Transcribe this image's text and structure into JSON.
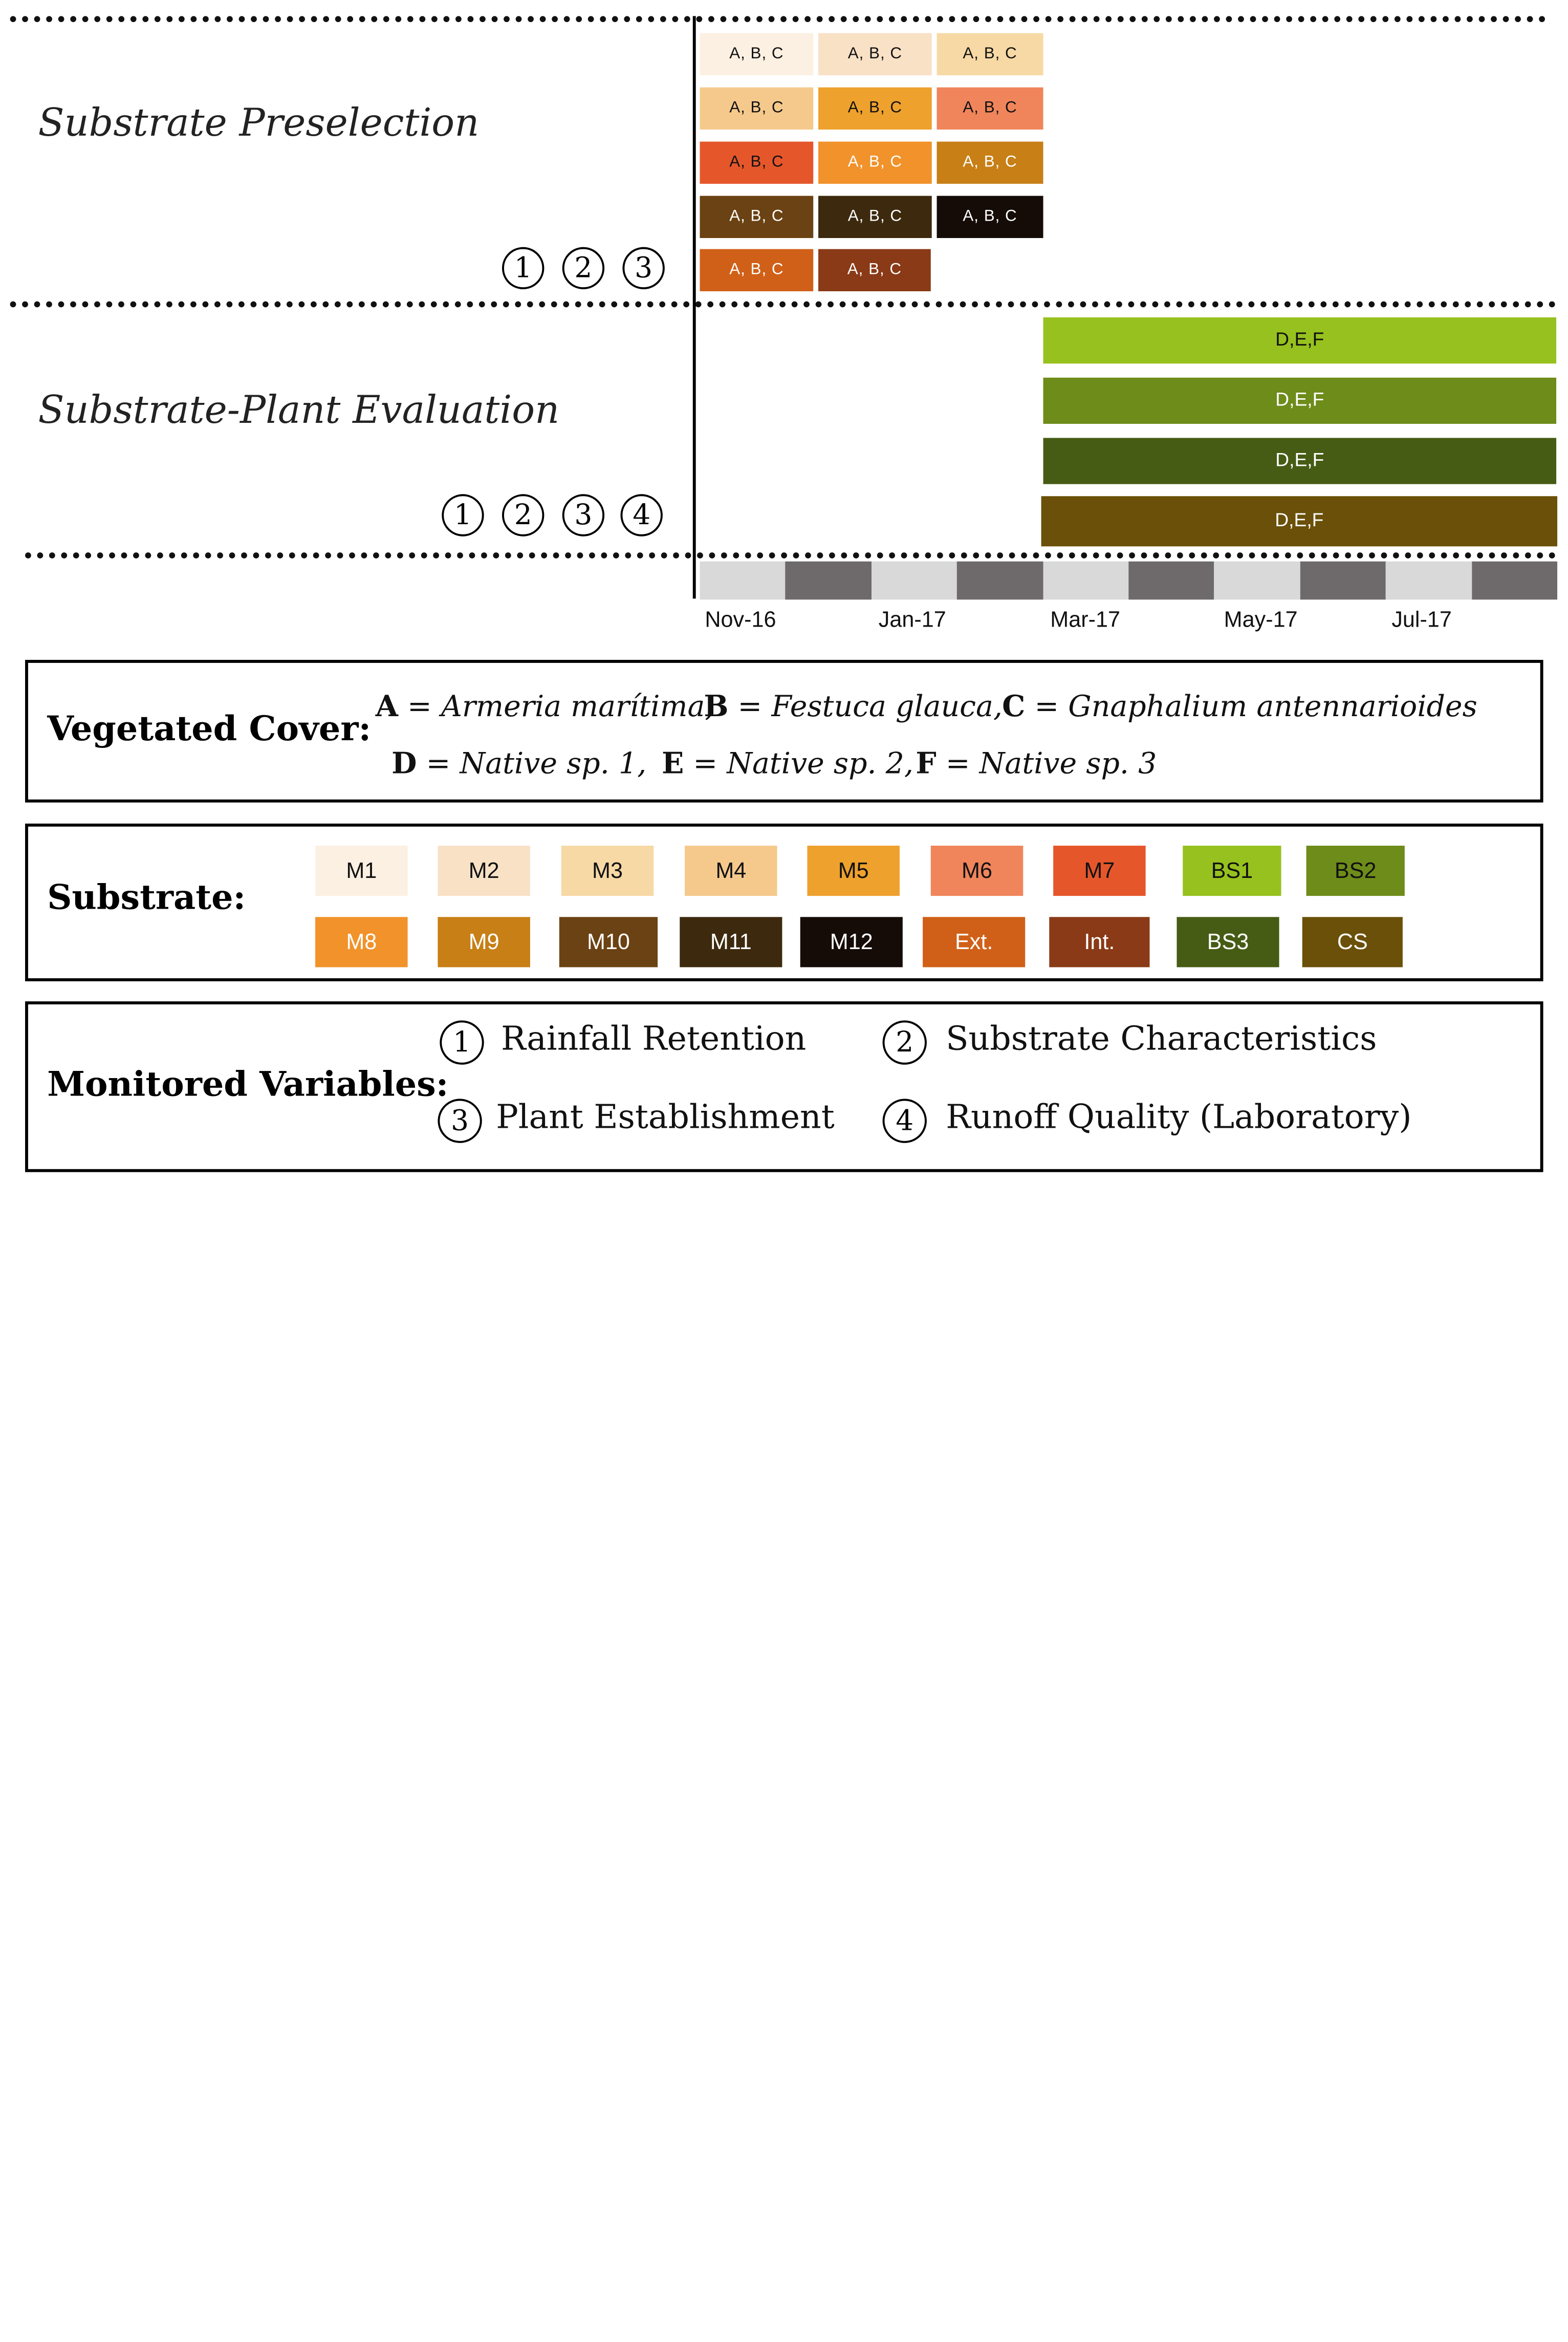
{
  "phases": {
    "preselection": {
      "title": "Substrate Preselection",
      "variables": [
        "1",
        "2",
        "3"
      ]
    },
    "evaluation": {
      "title": "Substrate-Plant Evaluation",
      "variables": [
        "1",
        "2",
        "3",
        "4"
      ]
    }
  },
  "preselection_cells": [
    {
      "label": "A, B, C",
      "color": "#fcf0e2",
      "text_color": "#111111"
    },
    {
      "label": "A, B, C",
      "color": "#f9e1c6",
      "text_color": "#111111"
    },
    {
      "label": "A, B, C",
      "color": "#f7d9a5",
      "text_color": "#111111"
    },
    {
      "label": "A, B, C",
      "color": "#f5c98c",
      "text_color": "#111111"
    },
    {
      "label": "A, B, C",
      "color": "#eea12d",
      "text_color": "#111111"
    },
    {
      "label": "A, B, C",
      "color": "#f0855b",
      "text_color": "#111111"
    },
    {
      "label": "A, B, C",
      "color": "#e5572b",
      "text_color": "#111111"
    },
    {
      "label": "A, B, C",
      "color": "#f1922a",
      "text_color": "#ffffff"
    },
    {
      "label": "A, B, C",
      "color": "#c77f16",
      "text_color": "#ffffff"
    },
    {
      "label": "A, B, C",
      "color": "#6b4213",
      "text_color": "#ffffff"
    },
    {
      "label": "A, B, C",
      "color": "#3d2a0e",
      "text_color": "#ffffff"
    },
    {
      "label": "A, B, C",
      "color": "#150c08",
      "text_color": "#ffffff"
    },
    {
      "label": "A, B, C",
      "color": "#d06018",
      "text_color": "#ffffff"
    },
    {
      "label": "A, B, C",
      "color": "#8a3a16",
      "text_color": "#ffffff"
    }
  ],
  "evaluation_bars": [
    {
      "label": "D,E,F",
      "color": "#97c11e",
      "text_color": "#111111"
    },
    {
      "label": "D,E,F",
      "color": "#6e8c1a",
      "text_color": "#ffffff"
    },
    {
      "label": "D,E,F",
      "color": "#465c14",
      "text_color": "#ffffff"
    },
    {
      "label": "D,E,F",
      "color": "#6a5008",
      "text_color": "#ffffff"
    }
  ],
  "timeline": {
    "segments": [
      "#d9d9d9",
      "#6e6a6b",
      "#d9d9d9",
      "#6e6a6b",
      "#d9d9d9",
      "#6e6a6b",
      "#d9d9d9",
      "#6e6a6b",
      "#d9d9d9",
      "#6e6a6b"
    ],
    "labels": [
      "Nov-16",
      "Jan-17",
      "Mar-17",
      "May-17",
      "Jul-17"
    ]
  },
  "vegetated_cover": {
    "title": "Vegetated Cover:",
    "items": [
      {
        "key": "A",
        "eq": " = ",
        "name": "Armeria marítima,"
      },
      {
        "key": "B",
        "eq": " = ",
        "name": "Festuca glauca,"
      },
      {
        "key": "C",
        "eq": " = ",
        "name": "Gnaphalium antennarioides"
      },
      {
        "key": "D",
        "eq": " = ",
        "name": "Native sp. 1,"
      },
      {
        "key": "E",
        "eq": " = ",
        "name": "Native sp. 2,"
      },
      {
        "key": "F",
        "eq": " = ",
        "name": "Native sp. 3"
      }
    ]
  },
  "substrate": {
    "title": "Substrate:",
    "swatches": [
      {
        "label": "M1",
        "color": "#fcf0e2",
        "text_color": "#111111"
      },
      {
        "label": "M2",
        "color": "#f9e1c6",
        "text_color": "#111111"
      },
      {
        "label": "M3",
        "color": "#f7d9a5",
        "text_color": "#111111"
      },
      {
        "label": "M4",
        "color": "#f5c98c",
        "text_color": "#111111"
      },
      {
        "label": "M5",
        "color": "#eea12d",
        "text_color": "#111111"
      },
      {
        "label": "M6",
        "color": "#f0855b",
        "text_color": "#111111"
      },
      {
        "label": "M7",
        "color": "#e5572b",
        "text_color": "#111111"
      },
      {
        "label": "BS1",
        "color": "#97c11e",
        "text_color": "#111111"
      },
      {
        "label": "BS2",
        "color": "#6e8c1a",
        "text_color": "#111111"
      },
      {
        "label": "M8",
        "color": "#f1922a",
        "text_color": "#ffffff"
      },
      {
        "label": "M9",
        "color": "#c77f16",
        "text_color": "#ffffff"
      },
      {
        "label": "M10",
        "color": "#6b4213",
        "text_color": "#ffffff"
      },
      {
        "label": "M11",
        "color": "#3d2a0e",
        "text_color": "#ffffff"
      },
      {
        "label": "M12",
        "color": "#150c08",
        "text_color": "#ffffff"
      },
      {
        "label": "Ext.",
        "color": "#d06018",
        "text_color": "#ffffff"
      },
      {
        "label": "Int.",
        "color": "#8a3a16",
        "text_color": "#ffffff"
      },
      {
        "label": "BS3",
        "color": "#465c14",
        "text_color": "#ffffff"
      },
      {
        "label": "CS",
        "color": "#6a5008",
        "text_color": "#ffffff"
      }
    ]
  },
  "monitored": {
    "title": "Monitored Variables:",
    "items": [
      {
        "num": "1",
        "label": "Rainfall Retention"
      },
      {
        "num": "2",
        "label": "Substrate Characteristics"
      },
      {
        "num": "3",
        "label": "Plant Establishment"
      },
      {
        "num": "4",
        "label": "Runoff Quality (Laboratory)"
      }
    ]
  }
}
